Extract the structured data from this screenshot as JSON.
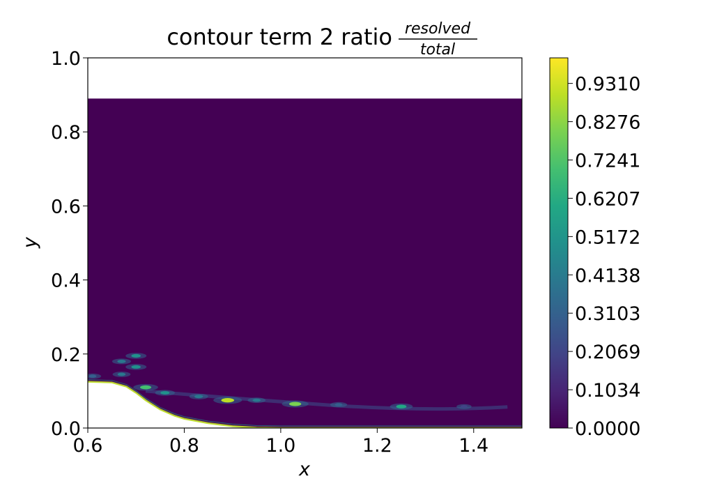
{
  "chart_data": {
    "type": "contour",
    "title": "contour term 2 ratio",
    "title_fraction": {
      "numerator": "resolved",
      "denominator": "total"
    },
    "xlabel": "x",
    "ylabel": "y",
    "xlim": [
      0.6,
      1.5
    ],
    "ylim": [
      0.0,
      1.0
    ],
    "x_ticks": [
      0.6,
      0.8,
      1.0,
      1.2,
      1.4
    ],
    "x_tick_labels": [
      "0.6",
      "0.8",
      "1.0",
      "1.2",
      "1.4"
    ],
    "y_ticks": [
      0.0,
      0.2,
      0.4,
      0.6,
      0.8,
      1.0
    ],
    "y_tick_labels": [
      "0.0",
      "0.2",
      "0.4",
      "0.6",
      "0.8",
      "1.0"
    ],
    "colormap": "viridis",
    "colorbar": {
      "range": [
        0.0,
        1.0
      ],
      "ticks": [
        0.0,
        0.1034,
        0.2069,
        0.3103,
        0.4138,
        0.5172,
        0.6207,
        0.7241,
        0.8276,
        0.931
      ],
      "tick_labels": [
        "0.0000",
        "0.1034",
        "0.2069",
        "0.3103",
        "0.4138",
        "0.5172",
        "0.6207",
        "0.7241",
        "0.8276",
        "0.9310"
      ]
    },
    "field": {
      "domain_top_y": 0.89,
      "background_value": 0.0,
      "wall_profile": [
        [
          0.6,
          0.125
        ],
        [
          0.65,
          0.123
        ],
        [
          0.68,
          0.112
        ],
        [
          0.7,
          0.095
        ],
        [
          0.72,
          0.075
        ],
        [
          0.75,
          0.05
        ],
        [
          0.78,
          0.033
        ],
        [
          0.8,
          0.025
        ],
        [
          0.85,
          0.013
        ],
        [
          0.9,
          0.005
        ],
        [
          0.95,
          0.001
        ],
        [
          1.0,
          0.0
        ],
        [
          1.5,
          0.0
        ]
      ],
      "wall_band_value": 0.9,
      "hotspots": [
        {
          "x": 0.89,
          "y": 0.075,
          "value": 0.9
        },
        {
          "x": 1.03,
          "y": 0.065,
          "value": 0.8
        },
        {
          "x": 1.25,
          "y": 0.058,
          "value": 0.6
        },
        {
          "x": 0.72,
          "y": 0.11,
          "value": 0.7
        },
        {
          "x": 0.7,
          "y": 0.195,
          "value": 0.5
        },
        {
          "x": 0.7,
          "y": 0.165,
          "value": 0.5
        },
        {
          "x": 0.67,
          "y": 0.18,
          "value": 0.4
        },
        {
          "x": 0.67,
          "y": 0.145,
          "value": 0.35
        },
        {
          "x": 0.61,
          "y": 0.14,
          "value": 0.3
        },
        {
          "x": 0.76,
          "y": 0.095,
          "value": 0.45
        },
        {
          "x": 0.83,
          "y": 0.085,
          "value": 0.4
        },
        {
          "x": 0.95,
          "y": 0.075,
          "value": 0.35
        },
        {
          "x": 1.12,
          "y": 0.063,
          "value": 0.3
        },
        {
          "x": 1.38,
          "y": 0.058,
          "value": 0.2
        }
      ]
    }
  }
}
